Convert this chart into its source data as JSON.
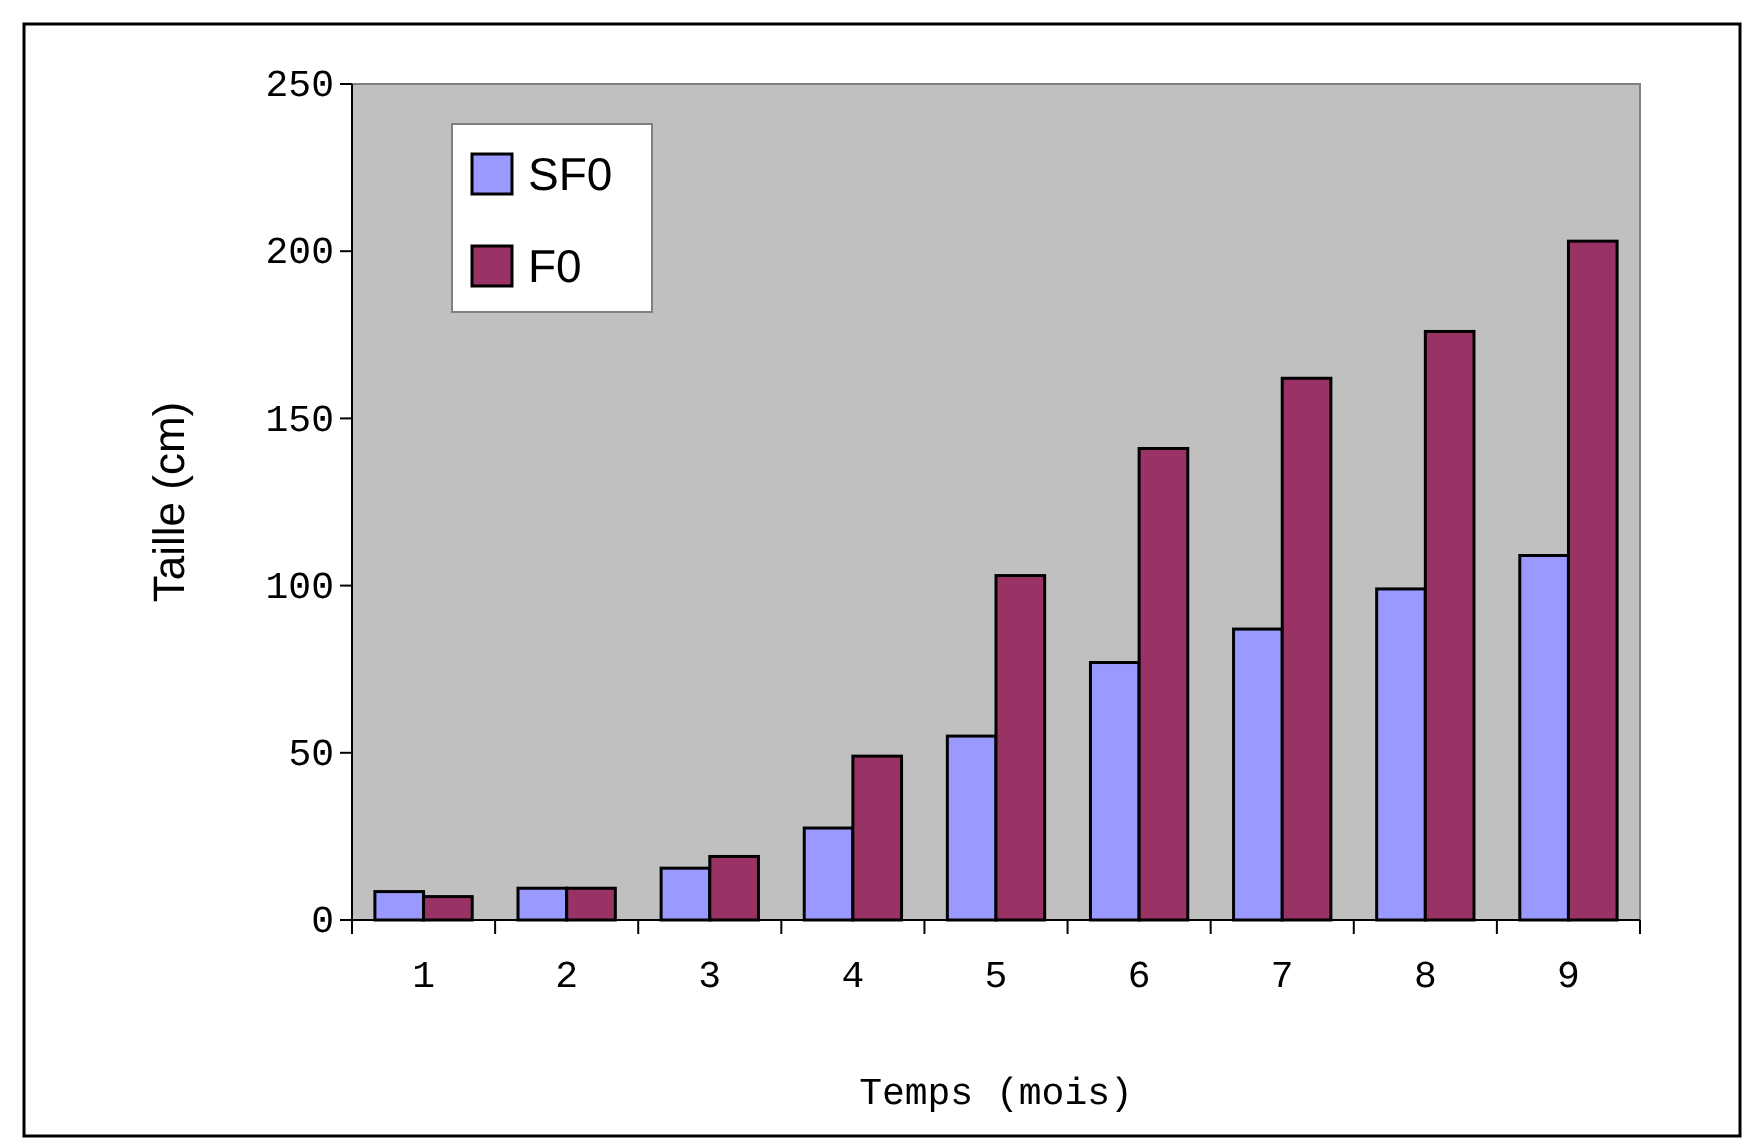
{
  "chart_data": {
    "type": "bar",
    "xlabel": "Temps (mois)",
    "ylabel": "Taille (cm)",
    "categories": [
      "1",
      "2",
      "3",
      "4",
      "5",
      "6",
      "7",
      "8",
      "9"
    ],
    "series": [
      {
        "name": "SF0",
        "color": "#9999ff",
        "values": [
          8.5,
          9.5,
          15.5,
          27.5,
          55,
          77,
          87,
          99,
          109
        ]
      },
      {
        "name": "F0",
        "color": "#993366",
        "values": [
          7,
          9.5,
          19,
          49,
          103,
          141,
          162,
          176,
          203
        ]
      }
    ],
    "ylim": [
      0,
      250
    ],
    "yticks": [
      0,
      50,
      100,
      150,
      200,
      250
    ],
    "grid": false,
    "legend": "top left"
  }
}
